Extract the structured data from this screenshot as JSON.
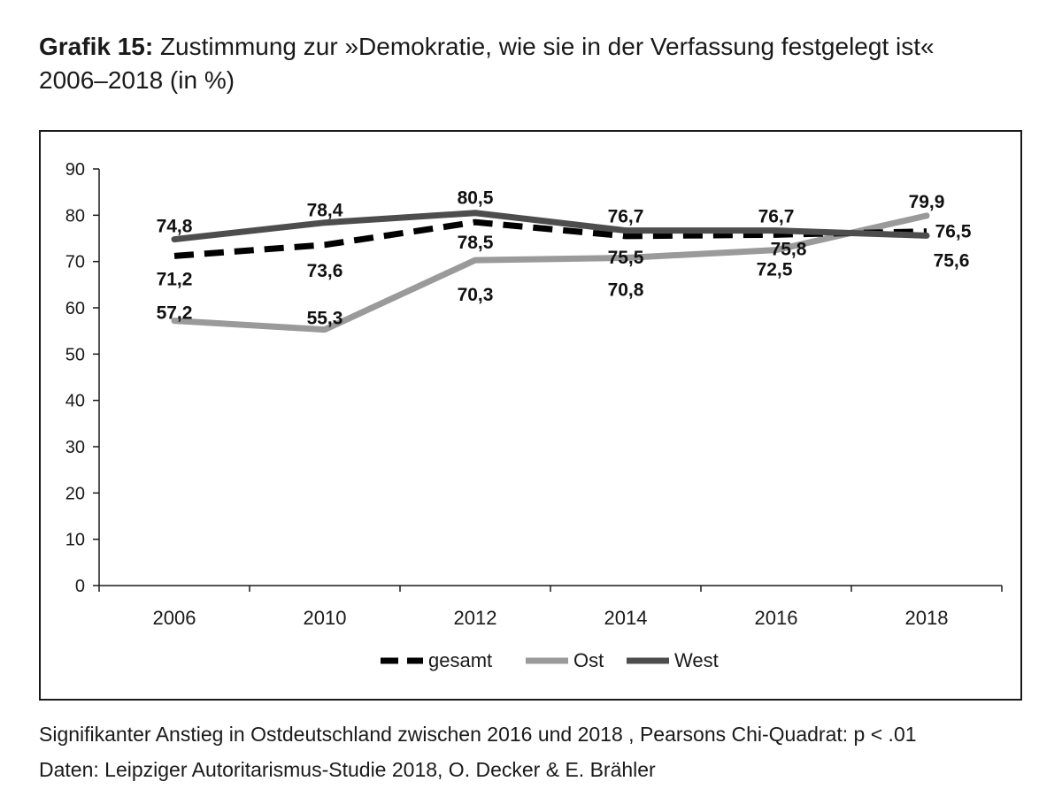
{
  "header": {
    "label": "Grafik 15:",
    "title": " Zustimmung zur »Demokratie, wie sie in der Verfassung festgelegt ist«",
    "subtitle": "2006–2018 (in %)"
  },
  "footer": {
    "note": "Signifikanter Anstieg in Ostdeutschland zwischen 2016 und 2018 , Pearsons Chi-Quadrat: p < .01",
    "source": "Daten: Leipziger Autoritarismus-Studie 2018, O. Decker & E. Brähler"
  },
  "chart_data": {
    "type": "line",
    "categories": [
      "2006",
      "2010",
      "2012",
      "2014",
      "2016",
      "2018"
    ],
    "ylim": [
      0,
      90
    ],
    "yticks": [
      0,
      10,
      20,
      30,
      40,
      50,
      60,
      70,
      80,
      90
    ],
    "grid": false,
    "legend": "bottom",
    "series": [
      {
        "name": "gesamt",
        "values": [
          71.2,
          73.6,
          78.5,
          75.5,
          75.8,
          76.5
        ],
        "labels": [
          "71,2",
          "73,6",
          "78,5",
          "75,5",
          "75,8",
          "76,5"
        ],
        "color": "#000000",
        "style": "dashed"
      },
      {
        "name": "Ost",
        "values": [
          57.2,
          55.3,
          70.3,
          70.8,
          72.5,
          79.9
        ],
        "labels": [
          "57,2",
          "55,3",
          "70,3",
          "70,8",
          "72,5",
          "79,9"
        ],
        "color": "#9a9a9a",
        "style": "solid"
      },
      {
        "name": "West",
        "values": [
          74.8,
          78.4,
          80.5,
          76.7,
          76.7,
          75.6
        ],
        "labels": [
          "74,8",
          "78,4",
          "80,5",
          "76,7",
          "76,7",
          "75,6"
        ],
        "color": "#4d4d4d",
        "style": "solid"
      }
    ]
  }
}
